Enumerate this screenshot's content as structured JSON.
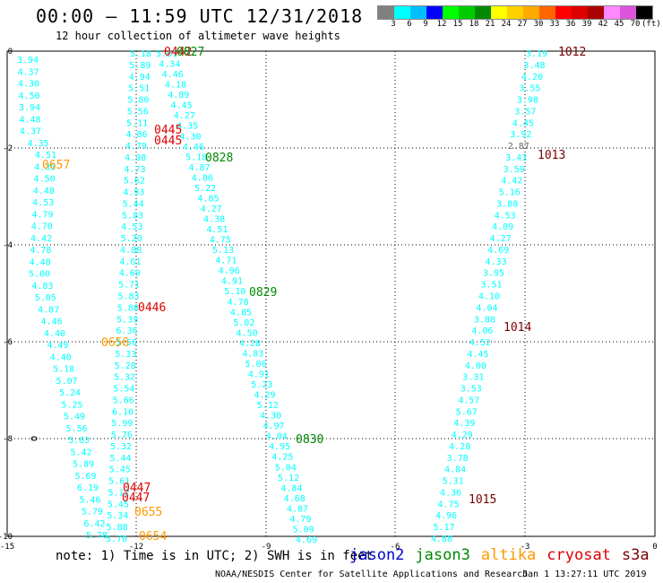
{
  "title": "00:00 – 11:59 UTC 12/31/2018",
  "subtitle": "12 hour collection of altimeter wave heights",
  "legend": {
    "colors": [
      "#808080",
      "#00ffff",
      "#00bfff",
      "#0000ff",
      "#00ff00",
      "#00cc00",
      "#008800",
      "#ffff00",
      "#ffd000",
      "#ffaa00",
      "#ff6600",
      "#ff0000",
      "#dd0000",
      "#aa0000",
      "#ff88ff",
      "#dd55dd",
      "#000000"
    ],
    "labels": [
      "3",
      "6",
      "9",
      "12",
      "15",
      "18",
      "21",
      "24",
      "27",
      "30",
      "33",
      "36",
      "39",
      "42",
      "45",
      "70"
    ],
    "unit": "(ft)"
  },
  "axes": {
    "x_ticks": [
      {
        "label": "-15"
      },
      {
        "label": "-12"
      },
      {
        "label": "-9"
      },
      {
        "label": "-6"
      },
      {
        "label": "-3"
      },
      {
        "label": "0"
      }
    ],
    "y_ticks": [
      {
        "label": "0"
      },
      {
        "label": "-2"
      },
      {
        "label": "-4"
      },
      {
        "label": "-6"
      },
      {
        "label": "-8"
      },
      {
        "label": "-10"
      }
    ]
  },
  "tracks": [
    {
      "id": "A",
      "values": [
        "3.94",
        "4.37",
        "4.30",
        "4.50",
        "3.94",
        "4.48",
        "4.37",
        "4.35",
        "4.51",
        "4.35",
        "4.50",
        "4.48",
        "4.53",
        "4.79",
        "4.70",
        "4.42",
        "4.78",
        "4.48",
        "5.00",
        "4.83",
        "5.05",
        "4.87",
        "4.46",
        "4.40",
        "4.49",
        "4.40",
        "5.18",
        "5.07",
        "5.24",
        "5.25",
        "5.49",
        "5.56",
        "5.63",
        "5.42",
        "5.89",
        "5.69",
        "6.19",
        "5.46",
        "5.79",
        "6.42",
        "5.78"
      ]
    },
    {
      "id": "B",
      "values": [
        "5.18",
        "5.89",
        "4.94",
        "5.51",
        "5.80",
        "5.56",
        "5.11",
        "4.86",
        "4.79",
        "4.98",
        "4.73",
        "5.62",
        "4.93",
        "5.44",
        "5.83",
        "4.53",
        "5.20",
        "4.88",
        "4.61",
        "4.69",
        "5.71",
        "5.83",
        "5.88",
        "5.39",
        "6.36",
        "5.56",
        "5.33",
        "5.28",
        "5.32",
        "5.54",
        "5.66",
        "6.10",
        "5.99",
        "5.76",
        "5.32",
        "5.44",
        "5.45",
        "5.61",
        "5.12",
        "5.45",
        "5.34",
        "5.88",
        "5.70"
      ]
    },
    {
      "id": "C",
      "values": [
        "5.61",
        "4.34",
        "4.46",
        "4.18",
        "4.89",
        "4.45",
        "4.27",
        "4.35",
        "4.30",
        "4.46",
        "5.18",
        "4.87",
        "4.86",
        "5.22",
        "4.85",
        "4.27",
        "4.38",
        "4.51",
        "4.75",
        "5.13",
        "4.71",
        "4.96",
        "4.91",
        "5.10",
        "4.78",
        "4.85",
        "5.02",
        "4.50",
        "4.28",
        "4.83",
        "5.06",
        "4.91",
        "5.23",
        "4.29",
        "5.12",
        "4.30",
        "4.97",
        "4.04",
        "4.95",
        "4.25",
        "5.04",
        "5.12",
        "4.84",
        "4.68",
        "4.87",
        "4.79",
        "5.09",
        "4.69"
      ]
    },
    {
      "id": "D",
      "values": [
        "3.19",
        "3.48",
        "4.20",
        "3.55",
        "3.98",
        "3.57",
        "4.45",
        "3.92",
        "2.87",
        "3.43",
        "3.59",
        "4.42",
        "5.16",
        "3.88",
        "4.53",
        "4.09",
        "4.27",
        "4.69",
        "4.33",
        "3.95",
        "3.51",
        "4.10",
        "4.04",
        "3.88",
        "4.06",
        "4.52",
        "4.45",
        "4.00",
        "3.31",
        "3.53",
        "4.57",
        "5.67",
        "4.39",
        "4.29",
        "4.28",
        "3.78",
        "4.84",
        "5.31",
        "4.36",
        "4.75",
        "4.96",
        "5.17",
        "4.88"
      ]
    }
  ],
  "time_labels": [
    {
      "text": "0442",
      "sat": "cryosat"
    },
    {
      "text": "0827",
      "sat": "jason3"
    },
    {
      "text": "1012",
      "sat": "s3a"
    },
    {
      "text": "0445",
      "sat": "cryosat"
    },
    {
      "text": "0445",
      "sat": "cryosat"
    },
    {
      "text": "1013",
      "sat": "s3a"
    },
    {
      "text": "0657",
      "sat": "altika"
    },
    {
      "text": "0828",
      "sat": "jason3"
    },
    {
      "text": "0829",
      "sat": "jason3"
    },
    {
      "text": "0446",
      "sat": "cryosat"
    },
    {
      "text": "1014",
      "sat": "s3a"
    },
    {
      "text": "0656",
      "sat": "altika"
    },
    {
      "text": "0830",
      "sat": "jason3"
    },
    {
      "text": "0447",
      "sat": "cryosat"
    },
    {
      "text": "0447",
      "sat": "cryosat"
    },
    {
      "text": "1015",
      "sat": "s3a"
    },
    {
      "text": "0655",
      "sat": "altika"
    },
    {
      "text": "0654",
      "sat": "altika"
    }
  ],
  "sat_colors": {
    "jason2": "#0000cc",
    "jason3": "#008800",
    "altika": "#ff9900",
    "cryosat": "#dd0000",
    "s3a": "#770000"
  },
  "note": "note: 1) Time is in UTC; 2) SWH is in feet",
  "satellites": [
    {
      "name": "jason2",
      "color": "#0000cc"
    },
    {
      "name": "jason3",
      "color": "#008800"
    },
    {
      "name": "altika",
      "color": "#ff9900"
    },
    {
      "name": "cryosat",
      "color": "#dd0000"
    },
    {
      "name": "s3a",
      "color": "#770000"
    }
  ],
  "credit": "NOAA/NESDIS Center for Satellite Applications and Research",
  "credit_time": "Jan  1 13:27:11 UTC 2019"
}
